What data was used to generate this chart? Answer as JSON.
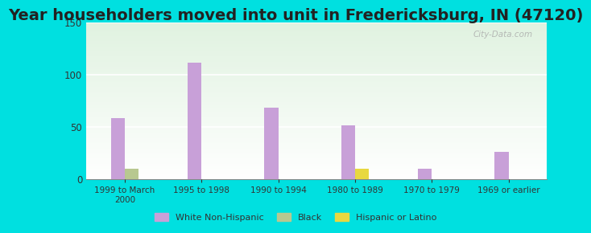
{
  "title": "Year householders moved into unit in Fredericksburg, IN (47120)",
  "categories": [
    "1999 to March\n2000",
    "1995 to 1998",
    "1990 to 1994",
    "1980 to 1989",
    "1970 to 1979",
    "1969 or earlier"
  ],
  "white_non_hispanic": [
    58,
    111,
    68,
    51,
    10,
    26
  ],
  "black": [
    10,
    0,
    0,
    0,
    0,
    0
  ],
  "hispanic_or_latino": [
    0,
    0,
    0,
    10,
    0,
    0
  ],
  "white_color": "#c8a0d8",
  "black_color": "#b8c890",
  "hispanic_color": "#e8d840",
  "background_outer": "#00e0e0",
  "ylim": [
    0,
    150
  ],
  "yticks": [
    0,
    50,
    100,
    150
  ],
  "bar_width": 0.18,
  "title_fontsize": 14,
  "watermark": "City-Data.com"
}
